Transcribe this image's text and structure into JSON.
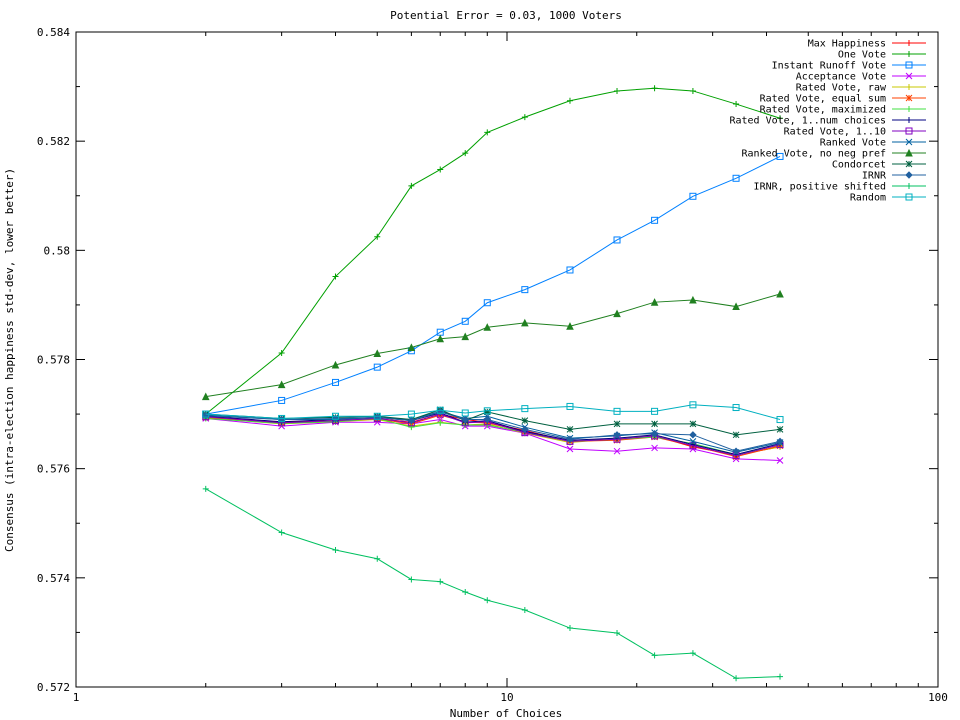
{
  "chart_data": {
    "type": "line",
    "title": "Potential Error = 0.03, 1000 Voters",
    "xlabel": "Number of Choices",
    "ylabel": "Consensus (intra-election happiness std-dev, lower better)",
    "x_scale": "log",
    "xlim": [
      1,
      100
    ],
    "ylim": [
      0.572,
      0.584
    ],
    "x_ticks": [
      "1",
      "10",
      "100"
    ],
    "y_ticks": [
      "0.572",
      "0.574",
      "0.576",
      "0.578",
      "0.58",
      "0.582",
      "0.584"
    ],
    "grid": false,
    "legend_position": "top-right",
    "x": [
      2,
      3,
      4,
      5,
      6,
      7,
      8,
      9,
      11,
      14,
      18,
      22,
      27,
      34,
      43
    ],
    "series": [
      {
        "name": "Max Happiness",
        "color": "#ff0000",
        "marker": "plus",
        "values": [
          0.57695,
          0.57685,
          0.57688,
          0.57692,
          0.57685,
          0.577,
          0.5769,
          0.57685,
          0.5767,
          0.5765,
          0.57655,
          0.5766,
          0.5764,
          0.57625,
          0.5764
        ]
      },
      {
        "name": "One Vote",
        "color": "#00a000",
        "marker": "plus",
        "values": [
          0.577,
          0.57812,
          0.57952,
          0.58025,
          0.58118,
          0.58148,
          0.58178,
          0.58216,
          0.58244,
          0.58274,
          0.58292,
          0.58297,
          0.58292,
          0.58268,
          0.58242
        ]
      },
      {
        "name": "Instant Runoff Vote",
        "color": "#0080ff",
        "marker": "square",
        "values": [
          0.577,
          0.57725,
          0.57758,
          0.57786,
          0.57816,
          0.5785,
          0.5787,
          0.57904,
          0.57928,
          0.57964,
          0.58019,
          0.58055,
          0.58099,
          0.58132,
          0.58172
        ]
      },
      {
        "name": "Acceptance Vote",
        "color": "#c000ff",
        "marker": "x",
        "values": [
          0.57692,
          0.57678,
          0.57685,
          0.57685,
          0.57682,
          0.5769,
          0.57678,
          0.57678,
          0.57665,
          0.57636,
          0.57632,
          0.57638,
          0.57636,
          0.57618,
          0.57615
        ]
      },
      {
        "name": "Rated Vote, raw",
        "color": "#c8c800",
        "marker": "plus",
        "values": [
          0.57693,
          0.57682,
          0.57686,
          0.5769,
          0.57678,
          0.57685,
          0.5768,
          0.57682,
          0.57665,
          0.57648,
          0.57655,
          0.5766,
          0.57645,
          0.57625,
          0.5764
        ]
      },
      {
        "name": "Rated Vote, equal sum",
        "color": "#ff4000",
        "marker": "asterisk",
        "values": [
          0.57694,
          0.57684,
          0.57687,
          0.57691,
          0.57682,
          0.57698,
          0.57686,
          0.57684,
          0.57668,
          0.5765,
          0.57652,
          0.57658,
          0.57642,
          0.57622,
          0.57642
        ]
      },
      {
        "name": "Rated Vote, maximized",
        "color": "#40e040",
        "marker": "plus",
        "values": [
          0.57692,
          0.57683,
          0.57686,
          0.57692,
          0.57676,
          0.57684,
          0.5768,
          0.5768,
          0.57667,
          0.5765,
          0.57654,
          0.57658,
          0.57646,
          0.57626,
          0.57644
        ]
      },
      {
        "name": "Rated Vote, 1..num choices",
        "color": "#000080",
        "marker": "plus",
        "values": [
          0.57696,
          0.57686,
          0.5769,
          0.57694,
          0.57688,
          0.57702,
          0.57685,
          0.57688,
          0.57668,
          0.57652,
          0.57656,
          0.57662,
          0.57644,
          0.57626,
          0.57646
        ]
      },
      {
        "name": "Rated Vote, 1..10",
        "color": "#8000c0",
        "marker": "square",
        "values": [
          0.57695,
          0.57684,
          0.57688,
          0.57692,
          0.57684,
          0.577,
          0.57684,
          0.57686,
          0.57666,
          0.5765,
          0.57654,
          0.5766,
          0.57642,
          0.57624,
          0.57644
        ]
      },
      {
        "name": "Ranked Vote",
        "color": "#0060a0",
        "marker": "x",
        "values": [
          0.57698,
          0.5769,
          0.5769,
          0.57694,
          0.5769,
          0.57705,
          0.57692,
          0.57696,
          0.57676,
          0.57656,
          0.5766,
          0.57666,
          0.5765,
          0.5763,
          0.57648
        ]
      },
      {
        "name": "Ranked Vote, no neg pref",
        "color": "#208020",
        "marker": "triangle",
        "values": [
          0.57732,
          0.57754,
          0.5779,
          0.57811,
          0.57822,
          0.57838,
          0.57842,
          0.57859,
          0.57867,
          0.57861,
          0.57884,
          0.57905,
          0.57909,
          0.57897,
          0.5792
        ]
      },
      {
        "name": "Condorcet",
        "color": "#006040",
        "marker": "asterisk",
        "values": [
          0.577,
          0.57692,
          0.57694,
          0.57696,
          0.5769,
          0.57708,
          0.57688,
          0.57704,
          0.57688,
          0.57672,
          0.57682,
          0.57682,
          0.57682,
          0.57662,
          0.57672
        ]
      },
      {
        "name": "IRNR",
        "color": "#2060a0",
        "marker": "diamond",
        "values": [
          0.57697,
          0.5769,
          0.57692,
          0.57694,
          0.57688,
          0.57704,
          0.5769,
          0.5769,
          0.57672,
          0.57654,
          0.57662,
          0.57664,
          0.57662,
          0.57632,
          0.5765
        ]
      },
      {
        "name": "IRNR, positive shifted",
        "color": "#00c060",
        "marker": "plus",
        "values": [
          0.57563,
          0.57483,
          0.57451,
          0.57435,
          0.57397,
          0.57393,
          0.57374,
          0.57359,
          0.57341,
          0.57308,
          0.57299,
          0.57258,
          0.57262,
          0.57216,
          0.57219
        ]
      },
      {
        "name": "Random",
        "color": "#00b0c0",
        "marker": "square",
        "values": [
          0.577,
          0.57692,
          0.57696,
          0.57696,
          0.577,
          0.57707,
          0.57702,
          0.57706,
          0.5771,
          0.57714,
          0.57705,
          0.57705,
          0.57717,
          0.57712,
          0.5769
        ]
      }
    ]
  }
}
